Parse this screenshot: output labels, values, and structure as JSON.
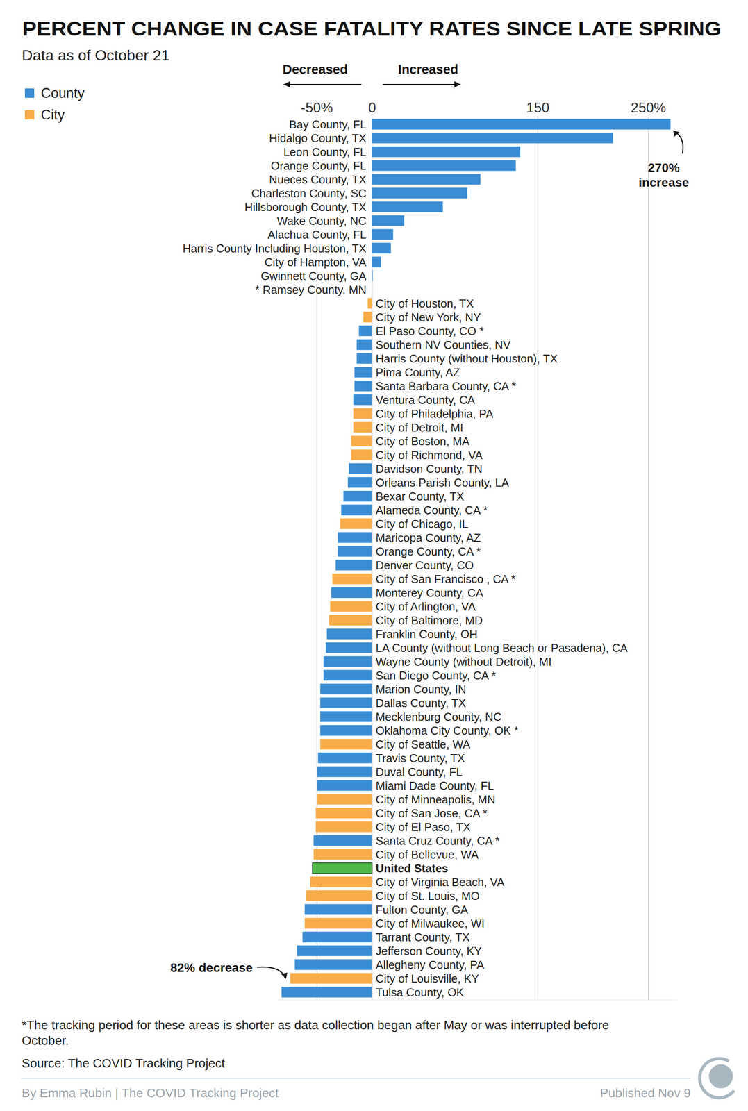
{
  "chart_data": {
    "type": "bar",
    "orientation": "horizontal",
    "title": "PERCENT CHANGE IN CASE FATALITY RATES SINCE LATE SPRING",
    "subtitle": "Data as of October 21",
    "direction_labels": {
      "left": "Decreased",
      "right": "Increased"
    },
    "categories": [
      "Bay County, FL",
      "Hidalgo County, TX",
      "Leon County, FL",
      "Orange County, FL",
      "Nueces County, TX",
      "Charleston County, SC",
      "Hillsborough County, TX",
      "Wake County, NC",
      "Alachua County, FL",
      "Harris County Including Houston, TX",
      "City of Hampton, VA",
      "Gwinnett County, GA",
      "* Ramsey County, MN",
      "City of Houston, TX",
      "City of New York, NY",
      "El Paso County, CO *",
      "Southern NV Counties, NV",
      "Harris County (without Houston), TX",
      "Pima County, AZ",
      "Santa Barbara County, CA *",
      "Ventura County, CA",
      "City of Philadelphia, PA",
      "City of Detroit, MI",
      "City of Boston, MA",
      "City of Richmond, VA",
      "Davidson County, TN",
      "Orleans Parish County, LA",
      "Bexar County, TX",
      "Alameda County, CA *",
      "City of Chicago, IL",
      "Maricopa County, AZ",
      "Orange County, CA *",
      "Denver County, CO",
      "City of San Francisco , CA *",
      "Monterey County, CA",
      "City of Arlington, VA",
      "City of Baltimore, MD",
      "Franklin County, OH",
      "LA County (without Long Beach or Pasadena), CA",
      "Wayne County (without Detroit), MI",
      "San Diego County, CA *",
      "Marion County, IN",
      "Dallas County, TX",
      "Mecklenburg County, NC",
      "Oklahoma City County, OK *",
      "City of Seattle, WA",
      "Travis County, TX",
      "Duval County, FL",
      "Miami Dade County, FL",
      "City of Minneapolis, MN",
      "City of San Jose, CA *",
      "City of El Paso, TX",
      "Santa Cruz County, CA *",
      "City of Bellevue, WA",
      "United States",
      "City of Virginia Beach, VA",
      "City of St. Louis, MO",
      "Fulton County, GA",
      "City of Milwaukee, WI",
      "Tarrant County, TX",
      "Jefferson County, KY",
      "Allegheny County, PA",
      "City of Louisville, KY",
      "Tulsa County, OK"
    ],
    "values": [
      270,
      218,
      134,
      130,
      98,
      86,
      64,
      29,
      19,
      17,
      8,
      0.5,
      0,
      -4,
      -8,
      -12,
      -14,
      -14,
      -16,
      -16,
      -17,
      -17,
      -17,
      -19,
      -19,
      -21,
      -22,
      -26,
      -28,
      -29,
      -31,
      -31,
      -33,
      -36,
      -37,
      -38,
      -39,
      -41,
      -42,
      -44,
      -44,
      -47,
      -47,
      -47,
      -47,
      -47,
      -49,
      -50,
      -50,
      -50,
      -51,
      -51,
      -53,
      -53,
      -54,
      -56,
      -60,
      -61,
      -61,
      -63,
      -68,
      -70,
      -74,
      -82
    ],
    "colors": [
      "#3b8dd4",
      "#3b8dd4",
      "#3b8dd4",
      "#3b8dd4",
      "#3b8dd4",
      "#3b8dd4",
      "#3b8dd4",
      "#3b8dd4",
      "#3b8dd4",
      "#3b8dd4",
      "#3b8dd4",
      "#3b8dd4",
      "#3b8dd4",
      "#f9ad4a",
      "#f9ad4a",
      "#3b8dd4",
      "#3b8dd4",
      "#3b8dd4",
      "#3b8dd4",
      "#3b8dd4",
      "#3b8dd4",
      "#f9ad4a",
      "#f9ad4a",
      "#f9ad4a",
      "#f9ad4a",
      "#3b8dd4",
      "#3b8dd4",
      "#3b8dd4",
      "#3b8dd4",
      "#f9ad4a",
      "#3b8dd4",
      "#3b8dd4",
      "#3b8dd4",
      "#f9ad4a",
      "#3b8dd4",
      "#f9ad4a",
      "#f9ad4a",
      "#3b8dd4",
      "#3b8dd4",
      "#3b8dd4",
      "#3b8dd4",
      "#3b8dd4",
      "#3b8dd4",
      "#3b8dd4",
      "#3b8dd4",
      "#f9ad4a",
      "#3b8dd4",
      "#3b8dd4",
      "#3b8dd4",
      "#f9ad4a",
      "#f9ad4a",
      "#f9ad4a",
      "#3b8dd4",
      "#f9ad4a",
      "#4fb847",
      "#f9ad4a",
      "#f9ad4a",
      "#3b8dd4",
      "#f9ad4a",
      "#3b8dd4",
      "#3b8dd4",
      "#3b8dd4",
      "#f9ad4a",
      "#3b8dd4"
    ],
    "legend_entries": [
      {
        "name": "County",
        "color": "#3b8dd4"
      },
      {
        "name": "City",
        "color": "#f9ad4a"
      }
    ],
    "legend": "upper left",
    "xlim": [
      -85,
      275
    ],
    "xticks": [
      {
        "value": -50,
        "label": "-50%"
      },
      0,
      150,
      {
        "value": 250,
        "label": "250%"
      }
    ],
    "grid": true,
    "annotations": [
      {
        "text": [
          "270%",
          "increase"
        ]
      },
      {
        "text": [
          "82% decrease"
        ]
      }
    ],
    "footnote": [
      "*The tracking period for these areas is shorter as data collection began after May or was interrupted before",
      "October."
    ],
    "source": "Source: The COVID Tracking Project",
    "byline": "By Emma Rubin | The COVID Tracking Project",
    "published": "Published Nov 9"
  }
}
